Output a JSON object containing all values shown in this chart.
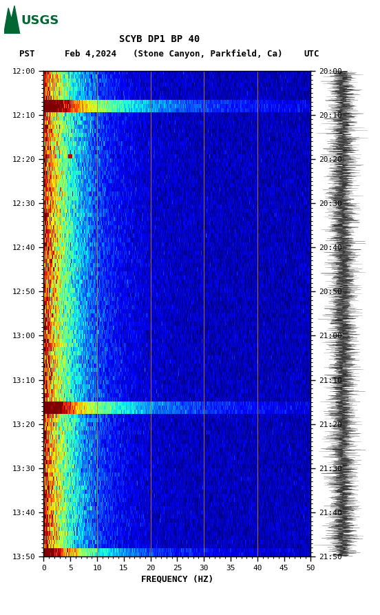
{
  "title_line1": "SCYB DP1 BP 40",
  "title_line2": "PST  Feb 4,2024   (Stone Canyon, Parkfield, Ca)          UTC",
  "xlabel": "FREQUENCY (HZ)",
  "freq_min": 0,
  "freq_max": 50,
  "freq_ticks": [
    0,
    5,
    10,
    15,
    20,
    25,
    30,
    35,
    40,
    45,
    50
  ],
  "time_labels_pst": [
    "12:00",
    "12:10",
    "12:20",
    "12:30",
    "12:40",
    "12:50",
    "13:00",
    "13:10",
    "13:20",
    "13:30",
    "13:40",
    "13:50"
  ],
  "time_labels_utc": [
    "20:00",
    "20:10",
    "20:20",
    "20:30",
    "20:40",
    "20:50",
    "21:00",
    "21:10",
    "21:20",
    "21:30",
    "21:40",
    "21:50"
  ],
  "vertical_lines_freq": [
    10,
    20,
    30,
    40
  ],
  "vline_color": "#cc8800",
  "spectrogram_colormap": "jet",
  "background_color": "#ffffff",
  "usgs_green": "#006633",
  "n_time_steps": 116,
  "n_freq_steps": 400,
  "freq_decay": 0.18,
  "base_power_low": 0.85,
  "base_power_high": 0.05
}
